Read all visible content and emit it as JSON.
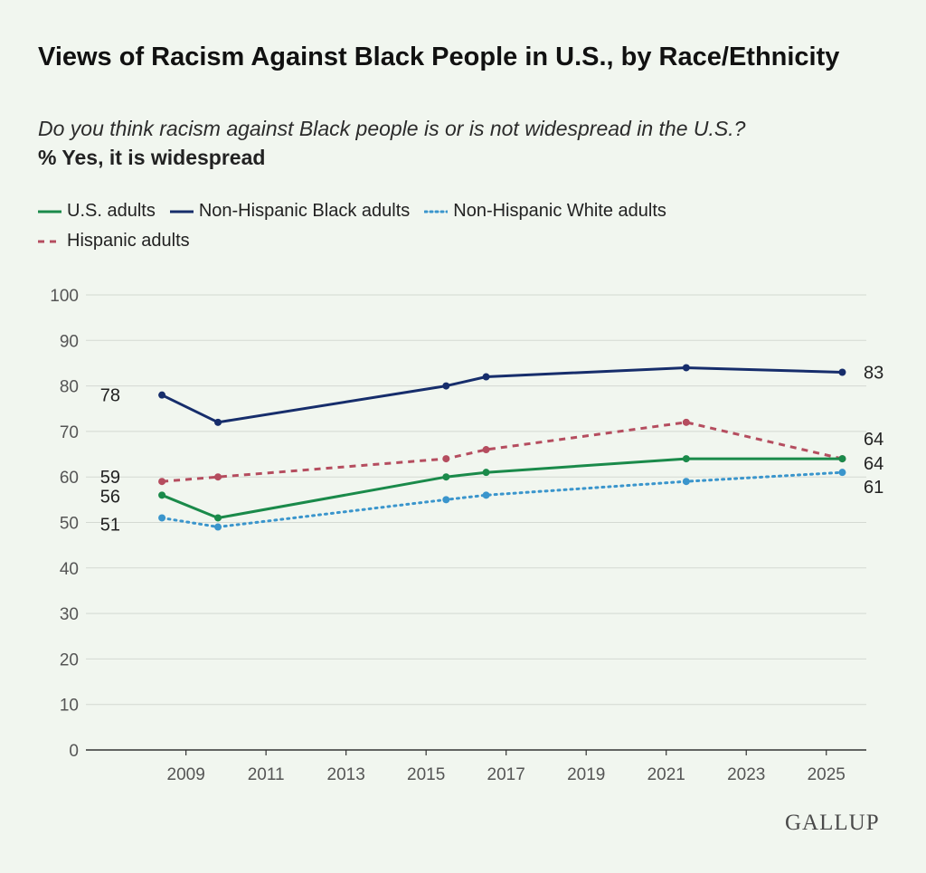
{
  "title": "Views of Racism Against Black People in U.S., by Race/Ethnicity",
  "subtitle": "Do you think racism against Black people is or is not widespread in the U.S.?",
  "measure": "% Yes, it is widespread",
  "brand": "GALLUP",
  "chart_data": {
    "type": "line",
    "x": [
      2008.4,
      2009.8,
      2015.5,
      2016.5,
      2021.5,
      2025.4
    ],
    "x_ticks": [
      2009,
      2011,
      2013,
      2015,
      2017,
      2019,
      2021,
      2023,
      2025
    ],
    "xlim": [
      2006.5,
      2026
    ],
    "ylim": [
      0,
      100
    ],
    "y_ticks": [
      0,
      10,
      20,
      30,
      40,
      50,
      60,
      70,
      80,
      90,
      100
    ],
    "grid": true,
    "legend_position": "top",
    "series": [
      {
        "name": "U.S. adults",
        "key": "us",
        "color": "#1a8a4a",
        "style": "solid",
        "values": [
          56,
          51,
          60,
          61,
          64,
          64
        ],
        "first_label": "56",
        "last_label": "64"
      },
      {
        "name": "Non-Hispanic Black adults",
        "key": "black",
        "color": "#162d6b",
        "style": "solid",
        "values": [
          78,
          72,
          80,
          82,
          84,
          83
        ],
        "first_label": "78",
        "last_label": "83"
      },
      {
        "name": "Non-Hispanic White adults",
        "key": "white",
        "color": "#3a95cc",
        "style": "dotted",
        "values": [
          51,
          49,
          55,
          56,
          59,
          61
        ],
        "first_label": "51",
        "last_label": "61"
      },
      {
        "name": "Hispanic adults",
        "key": "hispanic",
        "color": "#b54d5f",
        "style": "dashed",
        "values": [
          59,
          60,
          64,
          66,
          72,
          64
        ],
        "first_label": "59",
        "last_label": "64"
      }
    ]
  }
}
